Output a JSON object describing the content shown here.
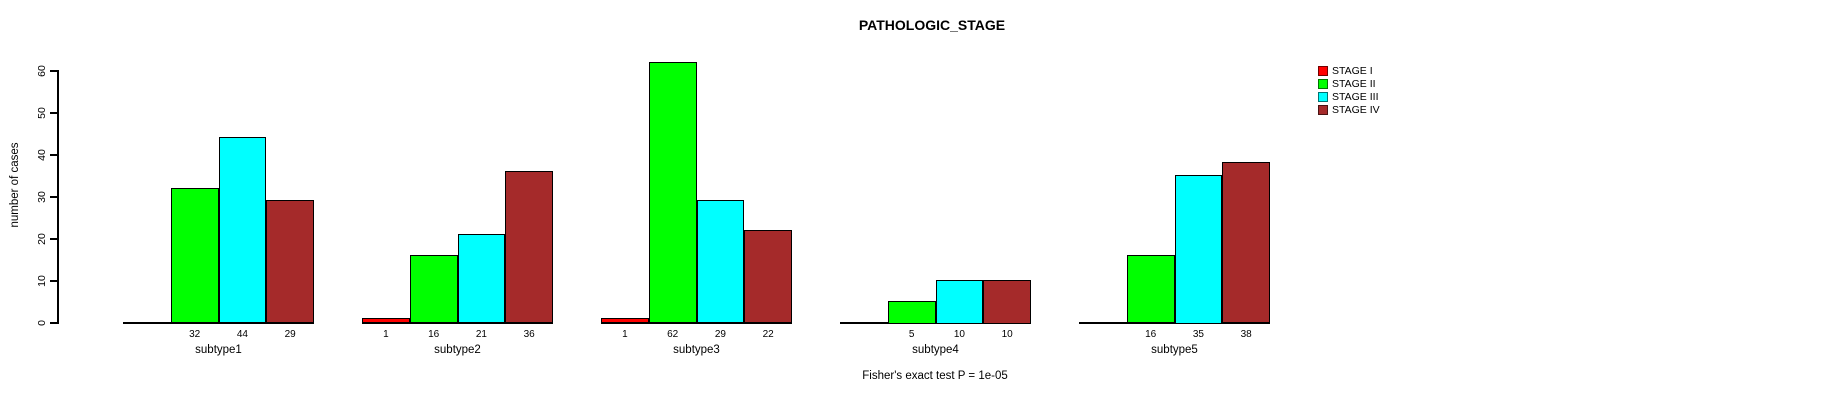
{
  "title": "PATHOLOGIC_STAGE",
  "ylabel": "number of cases",
  "footer": "Fisher's exact test P = 1e-05",
  "chart_data": {
    "type": "bar",
    "title": "PATHOLOGIC_STAGE",
    "xlabel": "",
    "ylabel": "number of cases",
    "categories": [
      "subtype1",
      "subtype2",
      "subtype3",
      "subtype4",
      "subtype5"
    ],
    "series": [
      {
        "name": "STAGE I",
        "color": "#ff0000",
        "values": [
          0,
          1,
          1,
          0,
          0
        ]
      },
      {
        "name": "STAGE II",
        "color": "#00ff00",
        "values": [
          32,
          16,
          62,
          5,
          16
        ]
      },
      {
        "name": "STAGE III",
        "color": "#00ffff",
        "values": [
          44,
          21,
          29,
          10,
          35
        ]
      },
      {
        "name": "STAGE IV",
        "color": "#a52a2a",
        "values": [
          29,
          36,
          22,
          10,
          38
        ]
      }
    ],
    "yticks": [
      0,
      10,
      20,
      30,
      40,
      50,
      60
    ],
    "ylim": [
      0,
      60
    ],
    "grid": false,
    "legend_position": "top-right",
    "bar_labels_shown_only_if_nonzero": true,
    "annotation": "Fisher's exact test P = 1e-05"
  }
}
